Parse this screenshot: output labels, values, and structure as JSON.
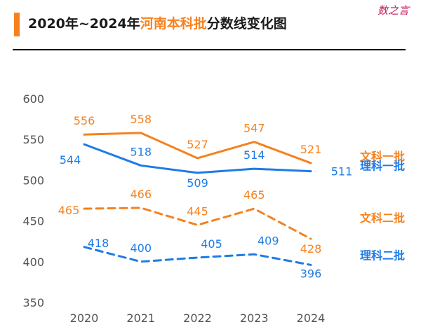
{
  "header": {
    "title_prefix": "2020年~2024年",
    "title_highlight": "河南本科批",
    "title_suffix": "分数线变化图",
    "watermark": "数之言"
  },
  "chart_data": {
    "type": "line",
    "title": "2020年~2024年河南本科批分数线变化图",
    "categories": [
      "2020",
      "2021",
      "2022",
      "2023",
      "2024"
    ],
    "ylim": [
      350,
      600
    ],
    "yticks": [
      350,
      400,
      450,
      500,
      550,
      600
    ],
    "xlabel": "",
    "ylabel": "",
    "grid": false,
    "series": [
      {
        "name": "文科一批",
        "values": [
          556,
          558,
          527,
          547,
          521
        ],
        "color": "#f5821f",
        "style": "solid",
        "label_pos": "above"
      },
      {
        "name": "理科一批",
        "values": [
          544,
          518,
          509,
          514,
          511
        ],
        "color": "#1e7be6",
        "style": "solid",
        "label_pos": "below"
      },
      {
        "name": "文科二批",
        "values": [
          465,
          466,
          445,
          465,
          428
        ],
        "color": "#f5821f",
        "style": "dashed",
        "label_pos": "above"
      },
      {
        "name": "理科二批",
        "values": [
          418,
          400,
          405,
          409,
          396
        ],
        "color": "#1e7be6",
        "style": "dashed",
        "label_pos": "above"
      }
    ]
  }
}
